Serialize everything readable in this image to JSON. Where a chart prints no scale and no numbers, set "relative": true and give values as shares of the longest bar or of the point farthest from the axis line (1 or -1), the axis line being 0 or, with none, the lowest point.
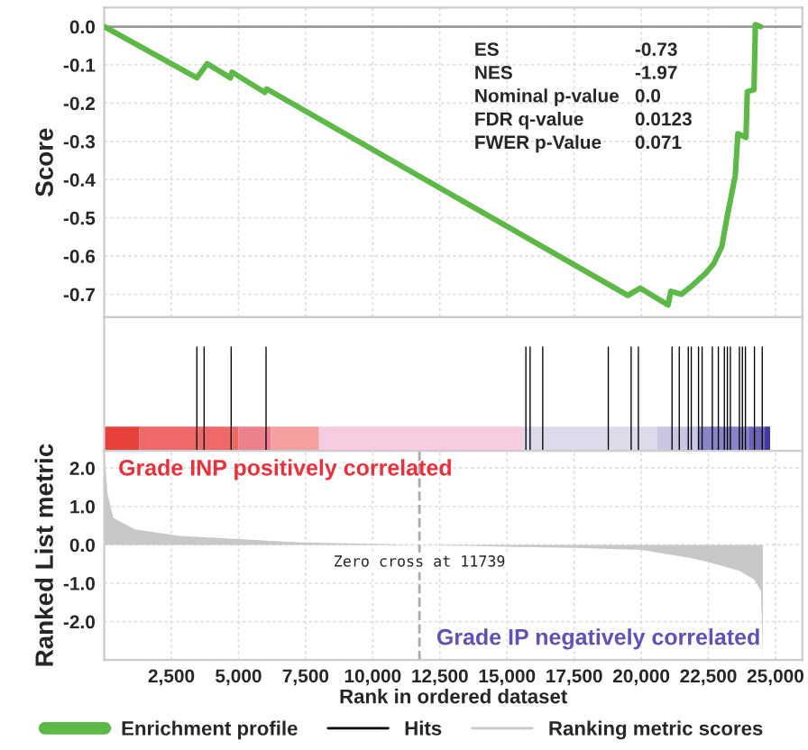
{
  "chart_data": [
    {
      "type": "line",
      "ylabel": "Score",
      "series": [
        {
          "name": "Enrichment profile",
          "color": "#5cb946",
          "x": [
            0,
            3450,
            3700,
            3830,
            4700,
            4760,
            5980,
            6050,
            19500,
            19960,
            21000,
            21100,
            21500,
            21850,
            22400,
            22700,
            23000,
            23200,
            23500,
            23600,
            23900,
            23950,
            24200,
            24250,
            24450
          ],
          "values": [
            0.0,
            -0.134,
            -0.11,
            -0.097,
            -0.134,
            -0.119,
            -0.172,
            -0.163,
            -0.703,
            -0.684,
            -0.728,
            -0.692,
            -0.7,
            -0.68,
            -0.645,
            -0.62,
            -0.575,
            -0.497,
            -0.39,
            -0.28,
            -0.29,
            -0.17,
            -0.165,
            0.005,
            0.0
          ]
        }
      ],
      "xlim": [
        0,
        26000
      ],
      "ylim": [
        -0.76,
        0.05
      ],
      "xticks": [
        2500,
        5000,
        7500,
        10000,
        12500,
        15000,
        17500,
        20000,
        22500,
        25000
      ],
      "yticks": [
        {
          "value": 0,
          "label": "0.0"
        },
        {
          "value": -0.1,
          "label": "-0.1"
        },
        {
          "value": -0.2,
          "label": "-0.2"
        },
        {
          "value": -0.3,
          "label": "-0.3"
        },
        {
          "value": -0.4,
          "label": "-0.4"
        },
        {
          "value": -0.5,
          "label": "-0.5"
        },
        {
          "value": -0.6,
          "label": "-0.6"
        },
        {
          "value": -0.7,
          "label": "-0.7"
        }
      ],
      "ref_lines": [
        {
          "axis": "y",
          "value": 0,
          "color": "#999999"
        }
      ],
      "annotations": [
        "ES",
        "-0.73",
        "NES",
        "-1.97",
        "Nominal p-value",
        "0.0",
        "FDR q-value",
        "0.0123",
        "FWER p-Value",
        "0.071"
      ],
      "grid": true,
      "tick_labels": "y"
    },
    {
      "type": "bar",
      "relative": true,
      "series": [
        {
          "name": "Hits",
          "color": "#000000",
          "x": [
            3450,
            3720,
            4727,
            6026,
            15704,
            15861,
            16331,
            18773,
            19624,
            19893,
            21147,
            21416,
            21752,
            21864,
            22133,
            22267,
            22648,
            22872,
            23096,
            23208,
            23320,
            23656,
            23768,
            23880,
            24216,
            24507
          ],
          "values": [
            1,
            1,
            1,
            1,
            1,
            1,
            1,
            1,
            1,
            1,
            1,
            1,
            1,
            1,
            1,
            1,
            1,
            1,
            1,
            1,
            1,
            1,
            1,
            1,
            1,
            1
          ]
        }
      ],
      "xlim": [
        0,
        26000
      ],
      "tick_labels": false,
      "bands": [
        {
          "axis": "x",
          "from": 0,
          "to": 1300,
          "color": "#e8403a"
        },
        {
          "axis": "x",
          "from": 1300,
          "to": 5000,
          "color": "#f06868"
        },
        {
          "axis": "x",
          "from": 5000,
          "to": 6200,
          "color": "#ee7f8c"
        },
        {
          "axis": "x",
          "from": 6200,
          "to": 8000,
          "color": "#f4a0a0"
        },
        {
          "axis": "x",
          "from": 8000,
          "to": 15600,
          "color": "#f7cce0"
        },
        {
          "axis": "x",
          "from": 15600,
          "to": 20600,
          "color": "#dcdaeb"
        },
        {
          "axis": "x",
          "from": 20600,
          "to": 22100,
          "color": "#c9c6e4"
        },
        {
          "axis": "x",
          "from": 22100,
          "to": 24000,
          "color": "#8884c8"
        },
        {
          "axis": "x",
          "from": 24000,
          "to": 24600,
          "color": "#6c64b4"
        },
        {
          "axis": "x",
          "from": 24600,
          "to": 24800,
          "color": "#3f3aa0"
        }
      ]
    },
    {
      "type": "area",
      "ylabel": "Ranked List metric",
      "xlabel": "Rank in ordered dataset",
      "series": [
        {
          "name": "Ranking metric scores",
          "color": "#c8c8c8",
          "x": [
            0,
            130,
            340,
            1140,
            2800,
            5000,
            7300,
            9500,
            11739,
            13000,
            15000,
            17500,
            20000,
            21800,
            22500,
            23650,
            24200,
            24460,
            24530
          ],
          "values": [
            2.4,
            1.3,
            0.7,
            0.4,
            0.23,
            0.15,
            0.06,
            0.03,
            0.0,
            -0.02,
            -0.05,
            -0.08,
            -0.13,
            -0.34,
            -0.45,
            -0.68,
            -0.9,
            -1.2,
            -2.9
          ]
        }
      ],
      "xlim": [
        0,
        26000
      ],
      "ylim": [
        -3.0,
        2.45
      ],
      "xticks": [
        {
          "value": 2500,
          "label": "2,500"
        },
        {
          "value": 5000,
          "label": "5,000"
        },
        {
          "value": 7500,
          "label": "7,500"
        },
        {
          "value": 10000,
          "label": "10,000"
        },
        {
          "value": 12500,
          "label": "12,500"
        },
        {
          "value": 15000,
          "label": "15,000"
        },
        {
          "value": 17500,
          "label": "17,500"
        },
        {
          "value": 20000,
          "label": "20,000"
        },
        {
          "value": 22500,
          "label": "22,500"
        },
        {
          "value": 25000,
          "label": "25,000"
        }
      ],
      "yticks": [
        {
          "value": 2,
          "label": "2.0"
        },
        {
          "value": 1,
          "label": "1.0"
        },
        {
          "value": 0,
          "label": "0.0"
        },
        {
          "value": -1,
          "label": "-1.0"
        },
        {
          "value": -2,
          "label": "-2.0"
        }
      ],
      "ref_lines": [
        {
          "axis": "x",
          "value": 11739,
          "color": "#aaaaaa",
          "line_style": "dashed"
        }
      ],
      "annotations": [
        "Grade INP positively correlated",
        "Grade IP negatively correlated",
        {
          "text": "Zero cross at 11739",
          "x": 11739,
          "y": 0
        }
      ],
      "grid": true,
      "legend": "bottom"
    }
  ]
}
